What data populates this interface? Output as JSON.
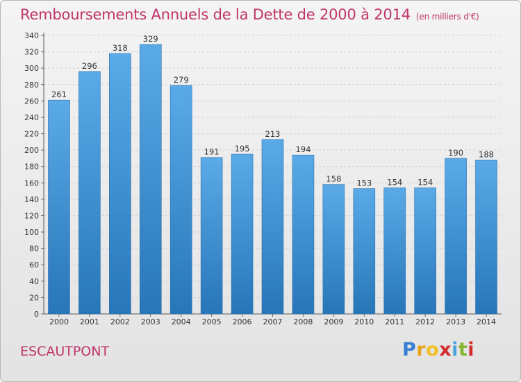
{
  "title": "Remboursements Annuels de la Dette de 2000 à 2014",
  "unit_note": "(en milliers d'€)",
  "place": "ESCAUTPONT",
  "brand": {
    "letters": [
      "P",
      "r",
      "o",
      "x",
      "i",
      "t",
      "i"
    ],
    "colors": [
      "#3a7fd5",
      "#e8a31a",
      "#f2c027",
      "#d42c2c",
      "#4aa3df",
      "#86b52e",
      "#d42c2c"
    ]
  },
  "colors": {
    "bar_top": "#5aaae8",
    "bar_bottom": "#2776b8",
    "text": "#c0346a",
    "label": "#333333",
    "grid": "#cfcfcf"
  },
  "chart_data": {
    "type": "bar",
    "title": "Remboursements Annuels de la Dette de 2000 à 2014",
    "categories": [
      "2000",
      "2001",
      "2002",
      "2003",
      "2004",
      "2005",
      "2006",
      "2007",
      "2008",
      "2009",
      "2010",
      "2011",
      "2012",
      "2013",
      "2014"
    ],
    "values": [
      261,
      296,
      318,
      329,
      279,
      191,
      195,
      213,
      194,
      158,
      153,
      154,
      154,
      190,
      188
    ],
    "ylim": [
      0,
      340
    ],
    "yticks": [
      0,
      20,
      40,
      60,
      80,
      100,
      120,
      140,
      160,
      180,
      200,
      220,
      240,
      260,
      280,
      300,
      320,
      340
    ],
    "grid": true,
    "xlabel": "",
    "ylabel": ""
  }
}
